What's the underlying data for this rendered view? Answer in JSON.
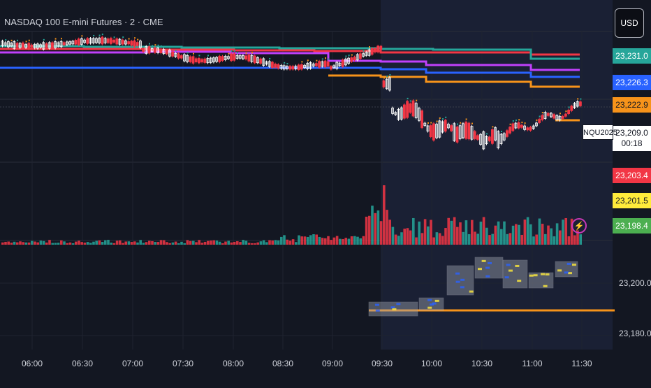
{
  "header": {
    "title": "NASDAQ 100 E-mini Futures · 2 · CME"
  },
  "currency_button": {
    "label": "USD"
  },
  "price_tags": [
    {
      "label": "23,231.0",
      "color": "#26a69a"
    },
    {
      "label": "23,226.3",
      "color": "#2962ff"
    },
    {
      "label": "23,222.9",
      "color": "#f7931a"
    },
    {
      "label": "23,203.4",
      "color": "#f23645"
    },
    {
      "label": "23,201.5",
      "color": "#ffeb3b"
    },
    {
      "label": "23,198.4",
      "color": "#4caf50"
    }
  ],
  "current_price": {
    "value": "23,209.0",
    "countdown": "00:18"
  },
  "symbol_tag": {
    "label": "NQU2025"
  },
  "lower_axis_labels": [
    "23,200.0",
    "23,180.0"
  ],
  "time_axis": [
    "06:00",
    "06:30",
    "07:00",
    "07:30",
    "08:00",
    "08:30",
    "09:00",
    "09:30",
    "10:00",
    "10:30",
    "11:00",
    "11:30"
  ],
  "icons": {
    "alert": "lightning-icon"
  },
  "colors": {
    "up": "#ffffff",
    "down": "#f23645",
    "vol_up": "#26a69a",
    "vol_down": "#f23645",
    "level_red": "#f23645",
    "level_green": "#26a69a",
    "level_purple": "#c040fb",
    "level_blue": "#2962ff",
    "level_orange": "#f7931a"
  },
  "chart_data": {
    "type": "candlestick",
    "title": "NASDAQ 100 E-mini Futures · 2 · CME",
    "x_ticks": [
      "06:00",
      "06:30",
      "07:00",
      "07:30",
      "08:00",
      "08:30",
      "09:00",
      "09:30",
      "10:00",
      "10:30",
      "11:00",
      "11:30"
    ],
    "price_levels": [
      23231.0,
      23226.3,
      23222.9,
      23203.4,
      23201.5,
      23198.4
    ],
    "last_price": 23209.0,
    "lower_pane_ticks": [
      23200.0,
      23180.0
    ]
  }
}
